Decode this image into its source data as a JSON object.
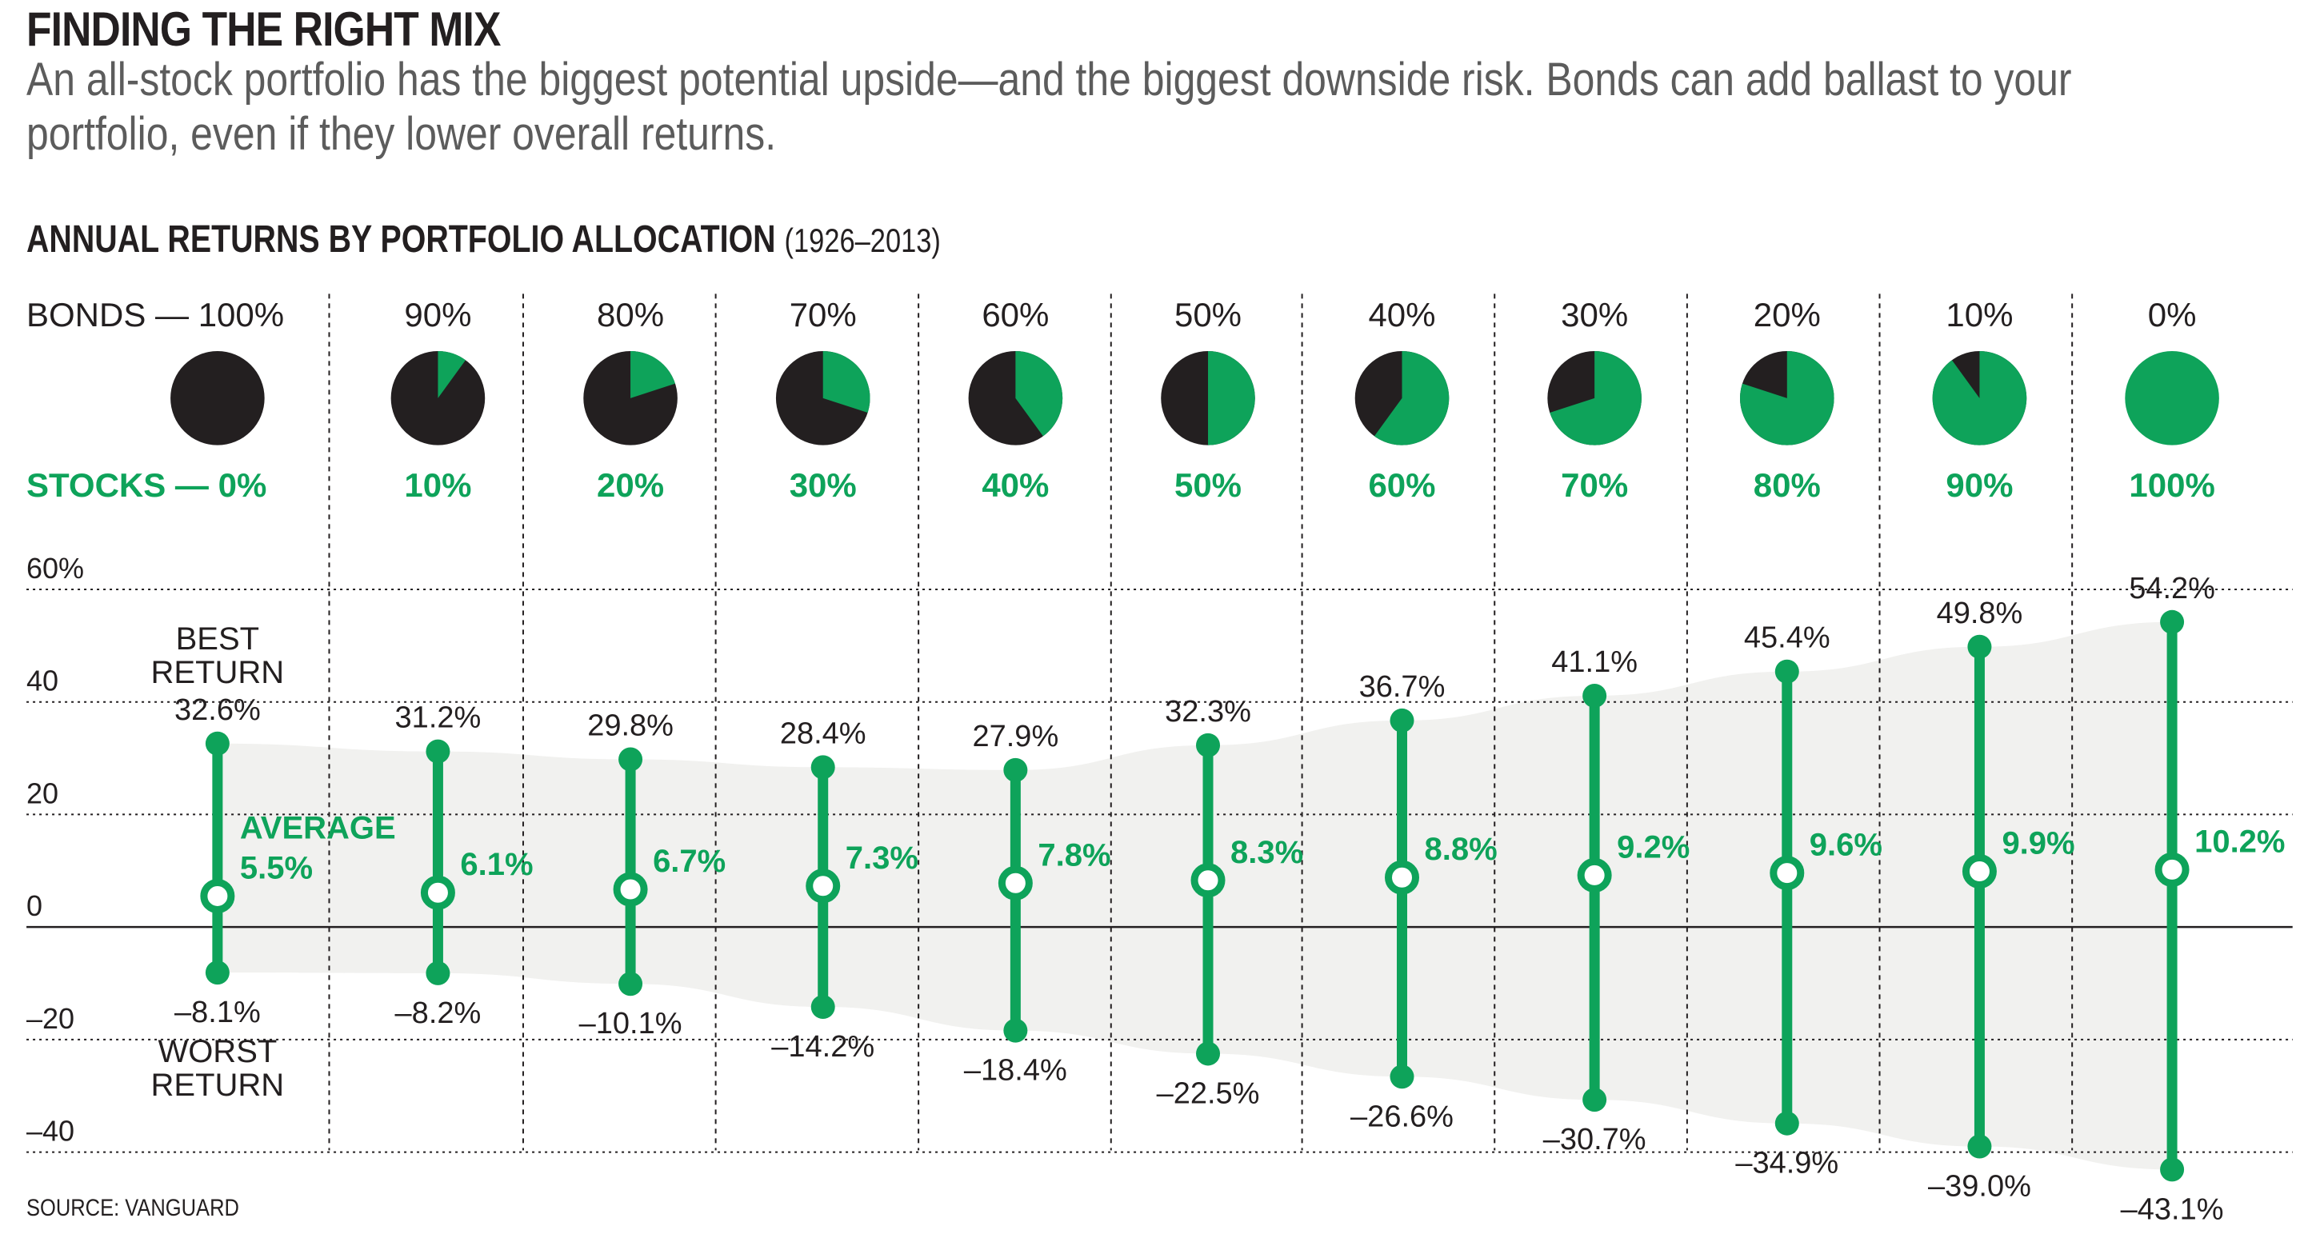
{
  "header": {
    "title": "FINDING THE RIGHT MIX",
    "subtitle": "An all-stock portfolio has the biggest potential upside—and the biggest downside risk. Bonds can add ballast to your portfolio, even if they lower overall returns."
  },
  "chart_heading": {
    "label": "ANNUAL RETURNS BY PORTFOLIO ALLOCATION",
    "years": "(1926–2013)"
  },
  "source": "SOURCE: VANGUARD",
  "colors": {
    "stocks": "#0ea35a",
    "bonds": "#231f20",
    "band": "#f1f1ef",
    "grid": "#231f20"
  },
  "labels": {
    "bonds_prefix": "BONDS — ",
    "stocks_prefix": "STOCKS — ",
    "best_return": [
      "BEST",
      "RETURN"
    ],
    "worst_return": [
      "WORST",
      "RETURN"
    ],
    "average": "AVERAGE"
  },
  "chart_data": {
    "type": "range",
    "title": "ANNUAL RETURNS BY PORTFOLIO ALLOCATION (1926–2013)",
    "xlabel": "",
    "ylabel": "",
    "ylim": [
      -40,
      60
    ],
    "yticks": [
      60,
      40,
      20,
      0,
      -20,
      -40
    ],
    "ytick_labels": [
      "60%",
      "40",
      "20",
      "0",
      "–20",
      "–40"
    ],
    "grid": true,
    "categories": [
      "100% bonds / 0% stocks",
      "90/10",
      "80/20",
      "70/30",
      "60/40",
      "50/50",
      "40/60",
      "30/70",
      "20/80",
      "10/90",
      "0/100"
    ],
    "bonds_pct": [
      100,
      90,
      80,
      70,
      60,
      50,
      40,
      30,
      20,
      10,
      0
    ],
    "stocks_pct": [
      0,
      10,
      20,
      30,
      40,
      50,
      60,
      70,
      80,
      90,
      100
    ],
    "bonds_labels": [
      "100%",
      "90%",
      "80%",
      "70%",
      "60%",
      "50%",
      "40%",
      "30%",
      "20%",
      "10%",
      "0%"
    ],
    "stocks_labels": [
      "0%",
      "10%",
      "20%",
      "30%",
      "40%",
      "50%",
      "60%",
      "70%",
      "80%",
      "90%",
      "100%"
    ],
    "series": [
      {
        "name": "Best return",
        "values": [
          32.6,
          31.2,
          29.8,
          28.4,
          27.9,
          32.3,
          36.7,
          41.1,
          45.4,
          49.8,
          54.2
        ],
        "labels": [
          "32.6%",
          "31.2%",
          "29.8%",
          "28.4%",
          "27.9%",
          "32.3%",
          "36.7%",
          "41.1%",
          "45.4%",
          "49.8%",
          "54.2%"
        ]
      },
      {
        "name": "Average",
        "values": [
          5.5,
          6.1,
          6.7,
          7.3,
          7.8,
          8.3,
          8.8,
          9.2,
          9.6,
          9.9,
          10.2
        ],
        "labels": [
          "5.5%",
          "6.1%",
          "6.7%",
          "7.3%",
          "7.8%",
          "8.3%",
          "8.8%",
          "9.2%",
          "9.6%",
          "9.9%",
          "10.2%"
        ]
      },
      {
        "name": "Worst return",
        "values": [
          -8.1,
          -8.2,
          -10.1,
          -14.2,
          -18.4,
          -22.5,
          -26.6,
          -30.7,
          -34.9,
          -39.0,
          -43.1
        ],
        "labels": [
          "–8.1%",
          "–8.2%",
          "–10.1%",
          "–14.2%",
          "–18.4%",
          "–22.5%",
          "–26.6%",
          "–30.7%",
          "–34.9%",
          "–39.0%",
          "–43.1%"
        ]
      }
    ]
  }
}
